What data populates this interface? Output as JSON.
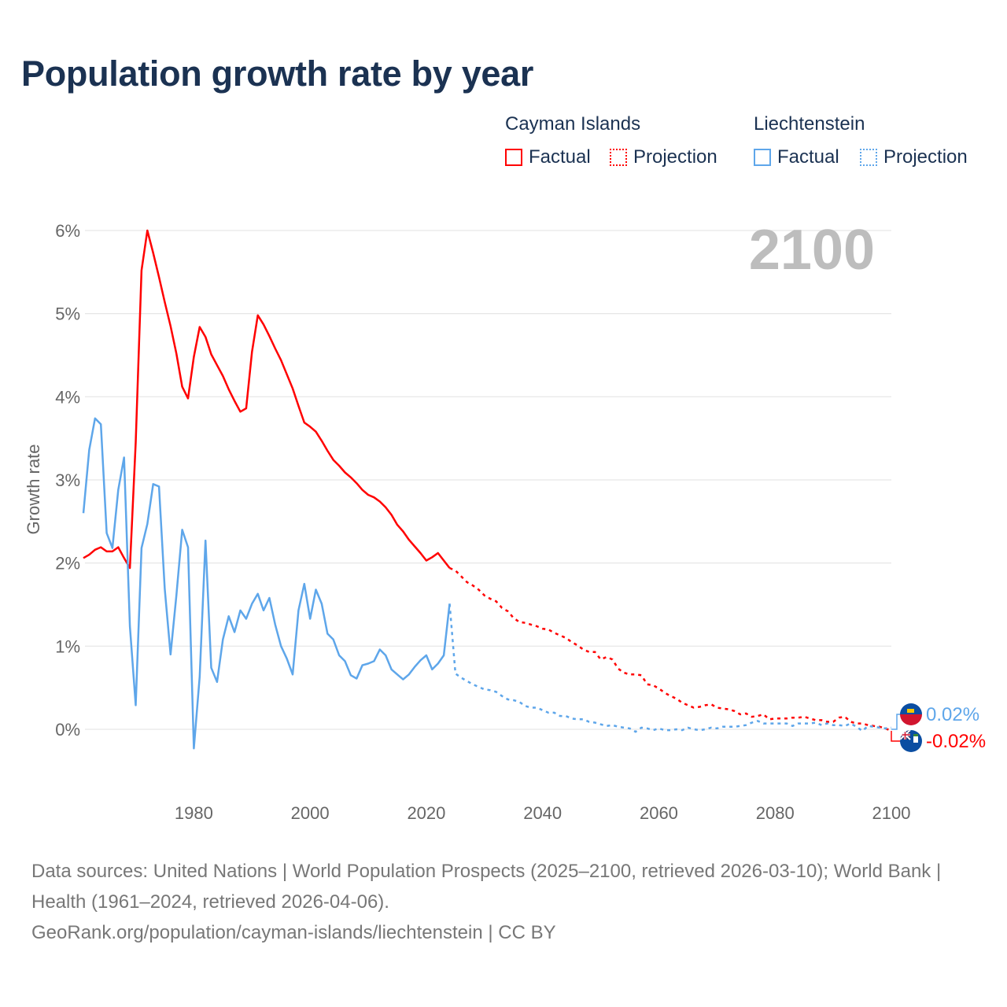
{
  "title": "Population growth rate by year",
  "legend": {
    "groups": [
      {
        "name": "Cayman Islands",
        "color": "#ff0000",
        "factual": "Factual",
        "projection": "Projection"
      },
      {
        "name": "Liechtenstein",
        "color": "#5ea6ea",
        "factual": "Factual",
        "projection": "Projection"
      }
    ]
  },
  "year_watermark": "2100",
  "end_labels": {
    "liechtenstein": "0.02%",
    "cayman": "-0.02%"
  },
  "footer": {
    "line1": "Data sources: United Nations | World Population Prospects (2025–2100, retrieved 2026-03-10); World Bank | Health (1961–2024, retrieved 2026-04-06).",
    "line2": "GeoRank.org/population/cayman-islands/liechtenstein | CC BY"
  },
  "chart_data": {
    "type": "line",
    "title": "Population growth rate by year",
    "xlabel": "",
    "ylabel": "Growth rate",
    "xlim": [
      1961,
      2100
    ],
    "ylim": [
      -0.8,
      6.4
    ],
    "x_ticks": [
      1980,
      2000,
      2020,
      2040,
      2060,
      2080,
      2100
    ],
    "y_ticks": [
      0,
      1,
      2,
      3,
      4,
      5,
      6
    ],
    "y_tick_labels": [
      "0%",
      "1%",
      "2%",
      "3%",
      "4%",
      "5%",
      "6%"
    ],
    "grid": true,
    "legend_position": "top-right",
    "factual_start": 1961,
    "projection_start": 2025,
    "series": [
      {
        "name": "Cayman Islands",
        "color": "#ff0000",
        "factual": [
          2.06,
          2.1,
          2.16,
          2.19,
          2.14,
          2.14,
          2.19,
          2.06,
          1.94,
          3.45,
          5.52,
          6.0,
          5.73,
          5.44,
          5.14,
          4.85,
          4.52,
          4.12,
          3.98,
          4.48,
          4.84,
          4.72,
          4.51,
          4.38,
          4.25,
          4.09,
          3.95,
          3.82,
          3.86,
          4.54,
          4.98,
          4.87,
          4.73,
          4.58,
          4.44,
          4.27,
          4.1,
          3.89,
          3.69,
          3.64,
          3.58,
          3.47,
          3.35,
          3.24,
          3.17,
          3.09,
          3.03,
          2.96,
          2.88,
          2.82,
          2.79,
          2.74,
          2.67,
          2.58,
          2.46,
          2.38,
          2.28,
          2.2,
          2.12,
          2.03,
          2.07,
          2.12,
          2.03,
          1.94
        ],
        "projection": [
          1.91,
          1.84,
          1.77,
          1.73,
          1.68,
          1.61,
          1.57,
          1.54,
          1.46,
          1.42,
          1.34,
          1.29,
          1.28,
          1.26,
          1.24,
          1.21,
          1.2,
          1.16,
          1.13,
          1.1,
          1.05,
          1.01,
          0.96,
          0.93,
          0.93,
          0.84,
          0.87,
          0.84,
          0.73,
          0.68,
          0.66,
          0.66,
          0.65,
          0.54,
          0.53,
          0.49,
          0.44,
          0.4,
          0.37,
          0.32,
          0.29,
          0.26,
          0.27,
          0.29,
          0.3,
          0.26,
          0.25,
          0.24,
          0.22,
          0.18,
          0.19,
          0.15,
          0.16,
          0.18,
          0.12,
          0.13,
          0.13,
          0.13,
          0.14,
          0.14,
          0.15,
          0.13,
          0.11,
          0.11,
          0.09,
          0.09,
          0.14,
          0.15,
          0.09,
          0.07,
          0.07,
          0.05,
          0.04,
          0.03,
          0.01,
          -0.02
        ]
      },
      {
        "name": "Liechtenstein",
        "color": "#5ea6ea",
        "factual": [
          2.6,
          3.36,
          3.74,
          3.67,
          2.36,
          2.18,
          2.88,
          3.27,
          1.24,
          0.29,
          2.18,
          2.47,
          2.95,
          2.92,
          1.69,
          0.9,
          1.61,
          2.4,
          2.19,
          -0.23,
          0.63,
          2.27,
          0.74,
          0.57,
          1.08,
          1.36,
          1.17,
          1.43,
          1.33,
          1.51,
          1.63,
          1.43,
          1.58,
          1.26,
          1.0,
          0.85,
          0.66,
          1.43,
          1.75,
          1.33,
          1.68,
          1.51,
          1.15,
          1.08,
          0.89,
          0.82,
          0.65,
          0.61,
          0.77,
          0.79,
          0.82,
          0.96,
          0.89,
          0.72,
          0.66,
          0.6,
          0.66,
          0.75,
          0.83,
          0.89,
          0.72,
          0.79,
          0.89,
          1.51
        ],
        "projection": [
          0.67,
          0.62,
          0.58,
          0.54,
          0.51,
          0.48,
          0.47,
          0.45,
          0.4,
          0.36,
          0.35,
          0.33,
          0.28,
          0.26,
          0.26,
          0.23,
          0.2,
          0.2,
          0.16,
          0.16,
          0.13,
          0.12,
          0.12,
          0.09,
          0.08,
          0.06,
          0.04,
          0.05,
          0.03,
          0.02,
          0.01,
          -0.03,
          0.02,
          0.01,
          -0.01,
          0.01,
          -0.01,
          -0.01,
          0.0,
          -0.01,
          0.02,
          0.0,
          -0.01,
          0.0,
          0.02,
          0.01,
          0.03,
          0.03,
          0.03,
          0.04,
          0.05,
          0.08,
          0.1,
          0.07,
          0.07,
          0.07,
          0.07,
          0.07,
          0.04,
          0.07,
          0.07,
          0.07,
          0.08,
          0.05,
          0.07,
          0.05,
          0.05,
          0.04,
          0.07,
          0.03,
          -0.02,
          0.04,
          0.03,
          0.02,
          0.01,
          0.02
        ]
      }
    ]
  }
}
